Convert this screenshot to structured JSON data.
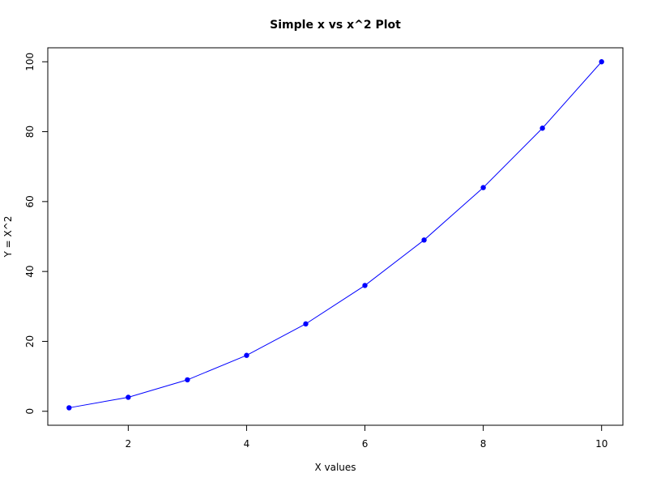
{
  "chart_data": {
    "type": "line",
    "title": "Simple x vs x^2 Plot",
    "xlabel": "X values",
    "ylabel": "Y = X^2",
    "x": [
      1,
      2,
      3,
      4,
      5,
      6,
      7,
      8,
      9,
      10
    ],
    "series": [
      {
        "values": [
          1,
          4,
          9,
          16,
          25,
          36,
          49,
          64,
          81,
          100
        ],
        "color": "#0000ff",
        "markers": true
      }
    ],
    "xlim": [
      0.64,
      10.36
    ],
    "ylim": [
      -4,
      104
    ],
    "xticks": [
      2,
      4,
      6,
      8,
      10
    ],
    "yticks": [
      0,
      20,
      40,
      60,
      80,
      100
    ],
    "grid": false,
    "legend": "none"
  }
}
